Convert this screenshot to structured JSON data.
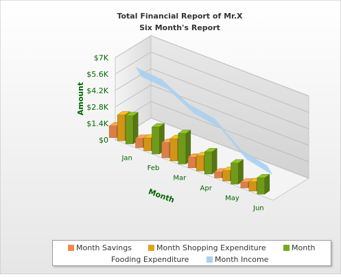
{
  "chart_data": {
    "type": "bar",
    "title": "Total Financial Report of Mr.X",
    "subtitle": "Six Month's Report",
    "xlabel": "Month",
    "ylabel": "Amount",
    "categories": [
      "Jan",
      "Feb",
      "Mar",
      "Apr",
      "May",
      "Jun"
    ],
    "y_ticks": [
      "$0",
      "$1.4K",
      "$2.8K",
      "$4.2K",
      "$5.6K",
      "$7K"
    ],
    "ylim": [
      0,
      7000
    ],
    "series": [
      {
        "name": "Month Savings",
        "type": "bar",
        "values": [
          1000,
          800,
          1300,
          900,
          500,
          500
        ],
        "color": "#f08a4b"
      },
      {
        "name": "Month Shopping Expenditure",
        "type": "bar",
        "values": [
          2200,
          1100,
          1900,
          1300,
          900,
          800
        ],
        "color": "#e3a21a"
      },
      {
        "name": "Month Fooding Expenditure",
        "type": "bar",
        "values": [
          2400,
          2300,
          2600,
          1900,
          1800,
          1400
        ],
        "color": "#7aa81c"
      },
      {
        "name": "Month Income",
        "type": "area",
        "values": [
          5600,
          5400,
          4200,
          3800,
          2000,
          1500
        ],
        "color": "#a8d0f0"
      }
    ],
    "grid": true,
    "legend_position": "bottom"
  },
  "legend": {
    "items": [
      {
        "label": "Month Savings",
        "color": "#f08a4b"
      },
      {
        "label": "Month Shopping Expenditure",
        "color": "#e3a21a"
      },
      {
        "label": "Month",
        "color": "#7aa81c"
      },
      {
        "label": "Fooding Expenditure",
        "color": ""
      },
      {
        "label": "Month Income",
        "color": "#a8d0f0"
      }
    ]
  }
}
